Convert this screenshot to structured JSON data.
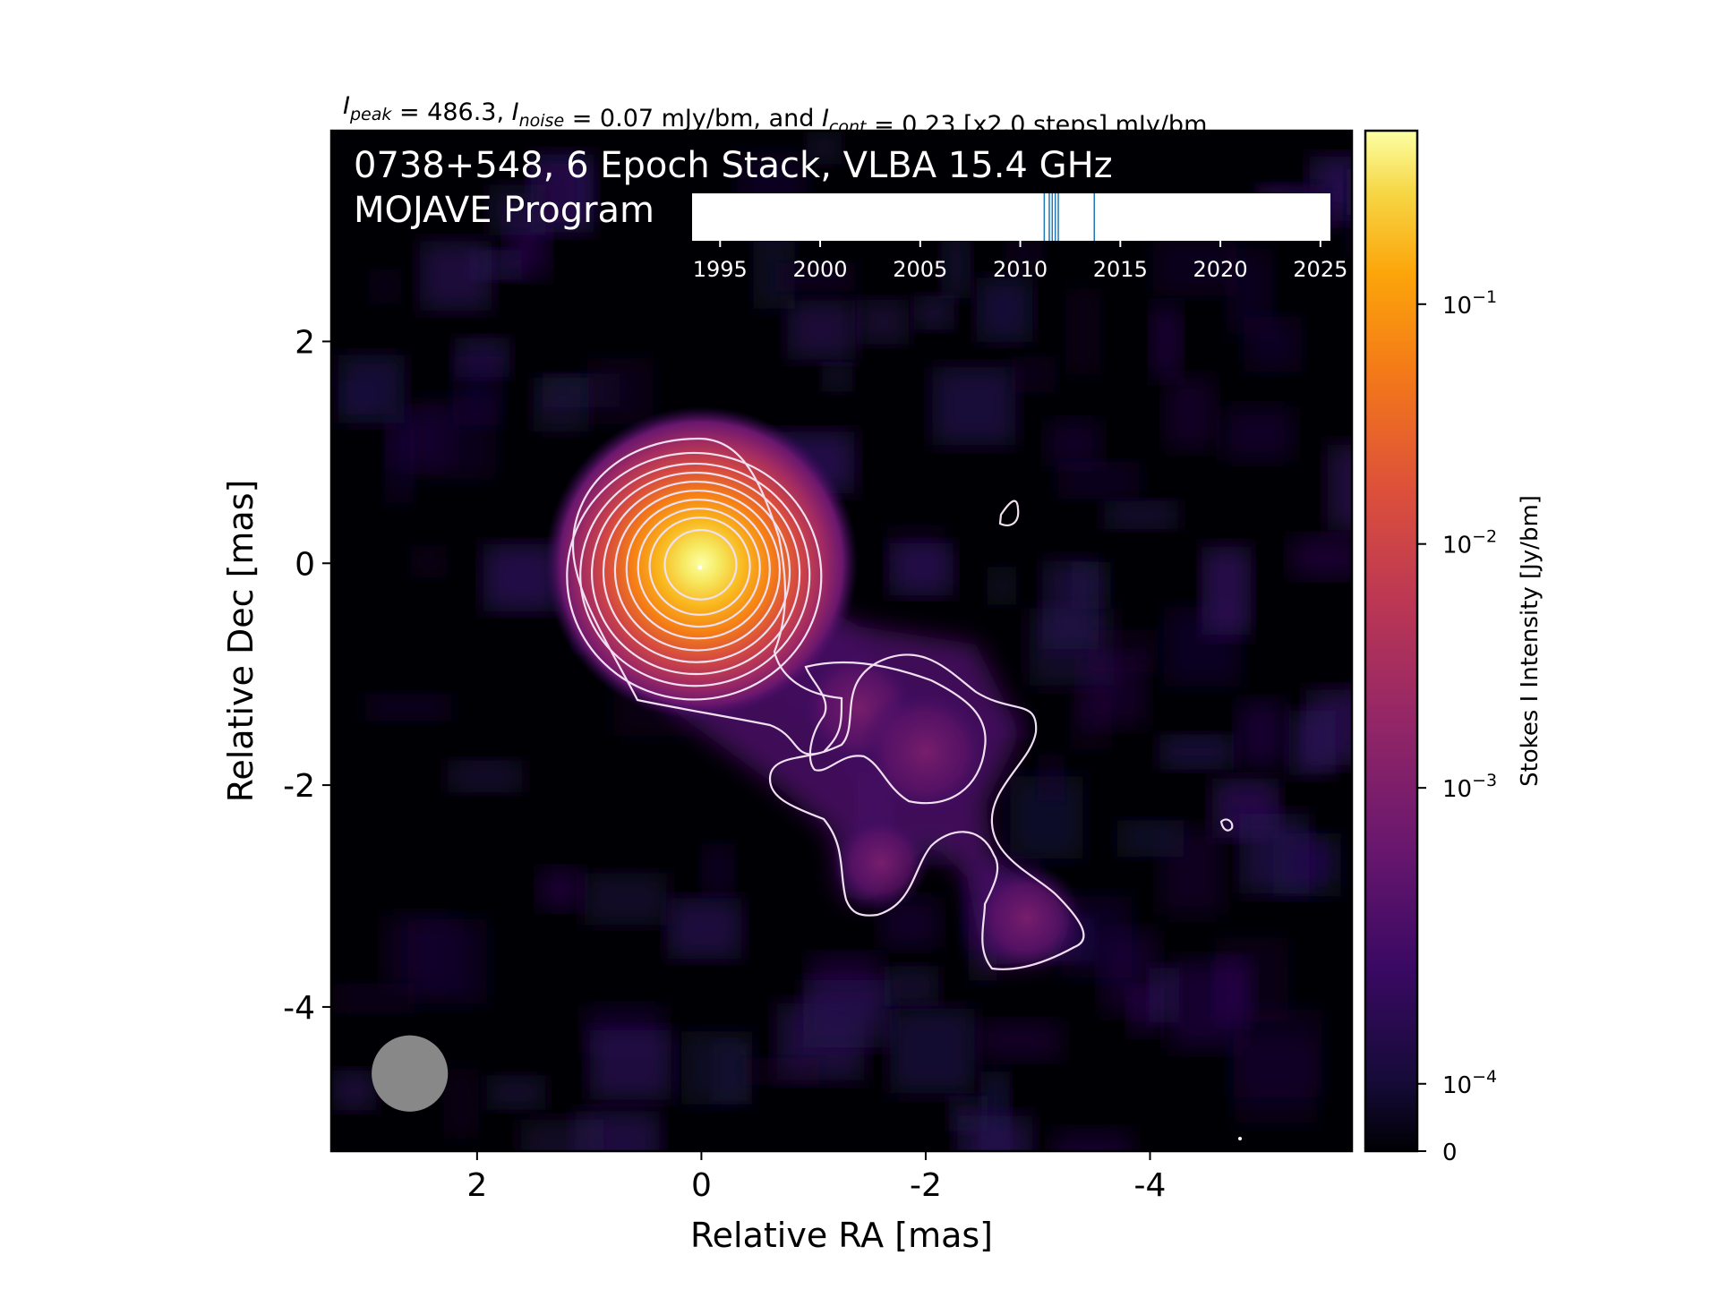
{
  "figure": {
    "header_parts": [
      {
        "main": "I",
        "sub": "peak"
      },
      {
        "text": " = 486.3, "
      },
      {
        "main": "I",
        "sub": "noise"
      },
      {
        "text": " = 0.07 mJy/bm, and "
      },
      {
        "main": "I",
        "sub": "cont"
      },
      {
        "text": " = 0.23 [x2.0 steps] mJy/bm"
      }
    ],
    "source_line": "0738+548, 6 Epoch Stack, VLBA 15.4 GHz",
    "program_line": "MOJAVE Program"
  },
  "chart_data": [
    {
      "type": "heatmap",
      "xlabel": "Relative RA [mas]",
      "ylabel": "Relative Dec [mas]",
      "xlim": [
        3.3,
        -5.8
      ],
      "ylim": [
        -5.3,
        3.9
      ],
      "xticks": [
        {
          "v": 2,
          "label": "2"
        },
        {
          "v": 0,
          "label": "0"
        },
        {
          "v": -2,
          "label": "-2"
        },
        {
          "v": -4,
          "label": "-4"
        }
      ],
      "yticks": [
        {
          "v": 2,
          "label": "2"
        },
        {
          "v": 0,
          "label": "0"
        },
        {
          "v": -2,
          "label": "-2"
        },
        {
          "v": -4,
          "label": "-4"
        }
      ],
      "colormap": "inferno",
      "core": {
        "x": 0,
        "y": 0,
        "peak_jy_per_beam": 0.4863
      },
      "jet_components": [
        {
          "x": -1.4,
          "y": -1.3,
          "level": 0.5
        },
        {
          "x": -2.0,
          "y": -1.7,
          "level": 0.55
        },
        {
          "x": -1.6,
          "y": -2.7,
          "level": 0.4
        },
        {
          "x": -2.9,
          "y": -3.2,
          "level": 0.45
        }
      ],
      "beam": {
        "x": 2.6,
        "y": -4.6,
        "diameter_mas": 0.68,
        "color": "#888888"
      },
      "contour_color": "#f0e0f0",
      "contour_levels_jy": [
        0.00023,
        0.00046,
        0.00092,
        0.00184,
        0.00368,
        0.00736,
        0.01472,
        0.02944,
        0.05888,
        0.11776,
        0.23552
      ],
      "isolated_contours": [
        {
          "points": [
            [
              -2.73,
              0.55
            ],
            [
              -2.82,
              0.6
            ],
            [
              -2.85,
              0.5
            ],
            [
              -2.8,
              0.38
            ],
            [
              -2.71,
              0.41
            ]
          ]
        },
        {
          "points": [
            [
              -4.69,
              -2.25
            ],
            [
              -4.75,
              -2.3
            ],
            [
              -4.68,
              -2.36
            ],
            [
              -4.63,
              -2.31
            ]
          ]
        }
      ]
    },
    {
      "type": "colorbar",
      "label": "Stokes I Intensity [Jy/bm]",
      "scale": "log",
      "ticks": [
        {
          "base": "10",
          "exp": "−1",
          "frac": 0.83
        },
        {
          "base": "10",
          "exp": "−2",
          "frac": 0.595
        },
        {
          "base": "10",
          "exp": "−3",
          "frac": 0.356
        },
        {
          "base": "10",
          "exp": "−4",
          "frac": 0.066
        },
        {
          "label": "0",
          "frac": 0.0
        }
      ]
    },
    {
      "type": "timeline",
      "xlim": [
        1993.6,
        2025.5
      ],
      "xticks": [
        1995,
        2000,
        2005,
        2010,
        2015,
        2020,
        2025
      ],
      "epochs": [
        2011.2,
        2011.45,
        2011.6,
        2011.75,
        2011.9,
        2013.7
      ],
      "line_color": "#1f77b4"
    }
  ]
}
